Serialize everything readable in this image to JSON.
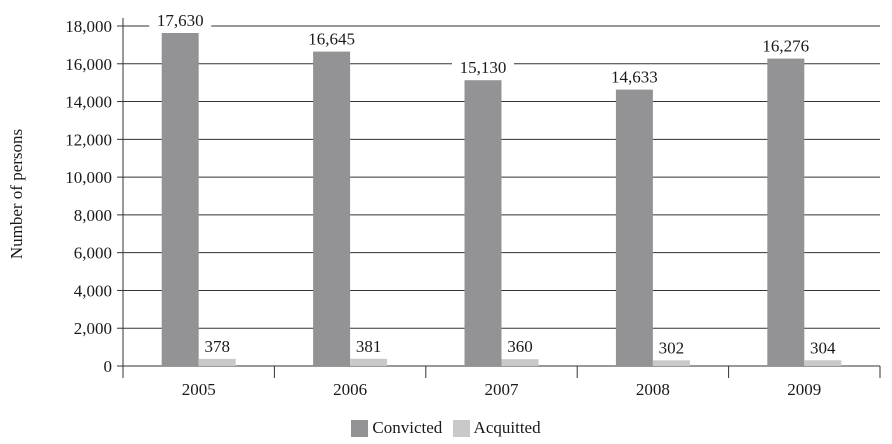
{
  "chart_data": {
    "type": "bar",
    "title": "",
    "xlabel": "",
    "ylabel": "Number of persons",
    "ylim": [
      0,
      18000
    ],
    "yticks": [
      0,
      2000,
      4000,
      6000,
      8000,
      10000,
      12000,
      14000,
      16000,
      18000
    ],
    "ytick_labels": [
      "0",
      "2,000",
      "4,000",
      "6,000",
      "8,000",
      "10,000",
      "12,000",
      "14,000",
      "16,000",
      "18,000"
    ],
    "grid": true,
    "legend_position": "bottom",
    "categories": [
      "2005",
      "2006",
      "2007",
      "2008",
      "2009"
    ],
    "series": [
      {
        "name": "Convicted",
        "color": "#939395",
        "values": [
          17630,
          16645,
          15130,
          14633,
          16276
        ],
        "labels": [
          "17,630",
          "16,645",
          "15,130",
          "14,633",
          "16,276"
        ]
      },
      {
        "name": "Acquitted",
        "color": "#c9c9ca",
        "values": [
          378,
          381,
          360,
          302,
          304
        ],
        "labels": [
          "378",
          "381",
          "360",
          "302",
          "304"
        ]
      }
    ]
  }
}
